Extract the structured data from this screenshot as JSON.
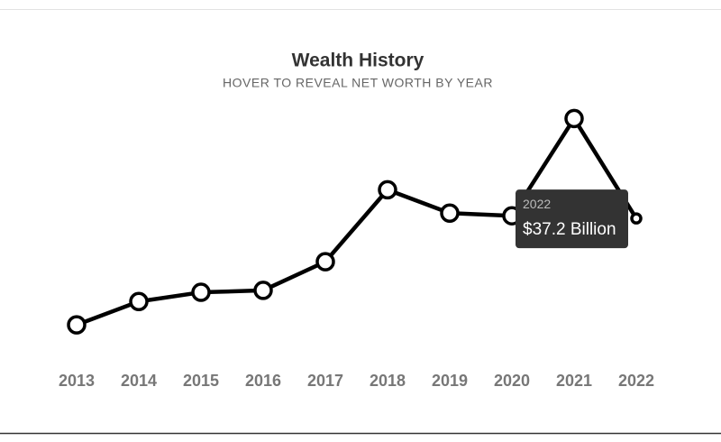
{
  "chart_data": {
    "type": "line",
    "title": "Wealth History",
    "subtitle": "HOVER TO REVEAL NET WORTH BY YEAR",
    "categories": [
      "2013",
      "2014",
      "2015",
      "2016",
      "2017",
      "2018",
      "2019",
      "2020",
      "2021",
      "2022"
    ],
    "values": [
      9.4,
      15.5,
      17.9,
      18.4,
      25.9,
      44.7,
      38.6,
      37.9,
      63.3,
      37.2
    ],
    "value_labels": [
      null,
      null,
      null,
      null,
      null,
      null,
      null,
      null,
      null,
      "$37.2 Billion"
    ],
    "color": "#000000",
    "ylim": [
      0,
      70
    ]
  }
}
